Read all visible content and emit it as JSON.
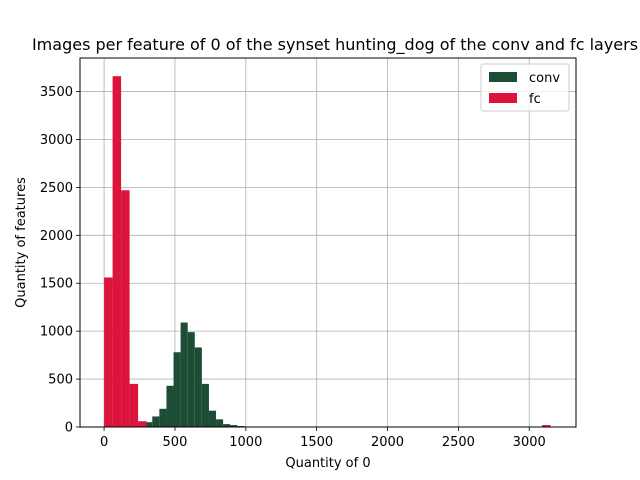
{
  "chart_data": {
    "type": "bar",
    "title": "Images per feature of 0 of the synset hunting_dog of the conv and fc layers",
    "xlabel": "Quantity of 0",
    "ylabel": "Quantity of features",
    "xlim": [
      -170,
      3330
    ],
    "ylim": [
      0,
      3850
    ],
    "xticks": [
      0,
      500,
      1000,
      1500,
      2000,
      2500,
      3000
    ],
    "yticks": [
      0,
      500,
      1000,
      1500,
      2000,
      2500,
      3000,
      3500
    ],
    "grid": true,
    "legend_position": "top-right",
    "series": [
      {
        "name": "conv",
        "color": "#1d4d35",
        "bins": [
          [
            240,
            290,
            10
          ],
          [
            290,
            340,
            50
          ],
          [
            340,
            390,
            110
          ],
          [
            390,
            440,
            190
          ],
          [
            440,
            490,
            430
          ],
          [
            490,
            540,
            780
          ],
          [
            540,
            590,
            1090
          ],
          [
            590,
            640,
            990
          ],
          [
            640,
            690,
            830
          ],
          [
            690,
            740,
            450
          ],
          [
            740,
            790,
            170
          ],
          [
            790,
            840,
            80
          ],
          [
            840,
            890,
            30
          ],
          [
            890,
            940,
            20
          ],
          [
            940,
            990,
            10
          ]
        ]
      },
      {
        "name": "fc",
        "color": "#dc143c",
        "bins": [
          [
            0,
            60,
            1560
          ],
          [
            60,
            120,
            3660
          ],
          [
            120,
            180,
            2470
          ],
          [
            180,
            240,
            450
          ],
          [
            240,
            300,
            60
          ],
          [
            3090,
            3150,
            20
          ]
        ]
      }
    ]
  }
}
